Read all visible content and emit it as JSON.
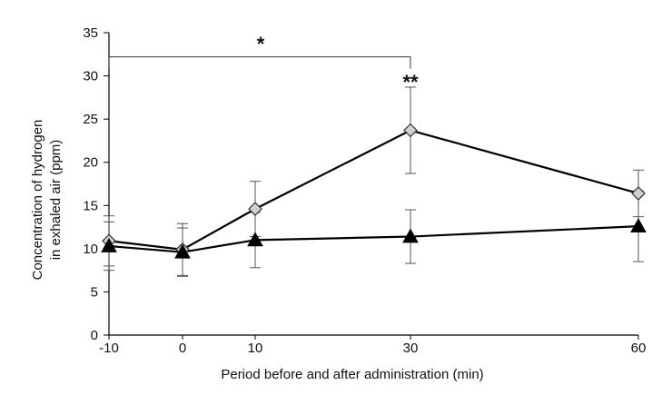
{
  "chart_data": {
    "type": "line",
    "xlabel": "Period before and after administration (min)",
    "ylabel_lines": [
      "Concentration of hydrogen",
      "in exhaled air (ppm)"
    ],
    "x": [
      -10,
      0,
      10,
      30,
      60
    ],
    "x_tick_labels": [
      "-10",
      "0",
      "10",
      "30",
      "60"
    ],
    "ylim": [
      0,
      35
    ],
    "y_ticks": [
      0,
      5,
      10,
      15,
      20,
      25,
      30,
      35
    ],
    "grid": false,
    "series": [
      {
        "name": "diamond group",
        "marker": "diamond",
        "fill": "#d0d0d0",
        "values": [
          10.9,
          9.9,
          14.6,
          23.7,
          16.4
        ],
        "error": [
          2.9,
          3.0,
          3.2,
          5.0,
          2.7
        ]
      },
      {
        "name": "triangle group",
        "marker": "triangle",
        "fill": "#000000",
        "values": [
          10.3,
          9.6,
          11.0,
          11.4,
          12.6
        ],
        "error": [
          2.8,
          2.8,
          3.2,
          3.1,
          4.1
        ]
      }
    ],
    "annotations": {
      "bracket_label": "*",
      "bracket_from_x": -10,
      "bracket_to_x": 30,
      "bracket_y": 32.2,
      "point_label": "**",
      "point_label_x": 30
    }
  }
}
